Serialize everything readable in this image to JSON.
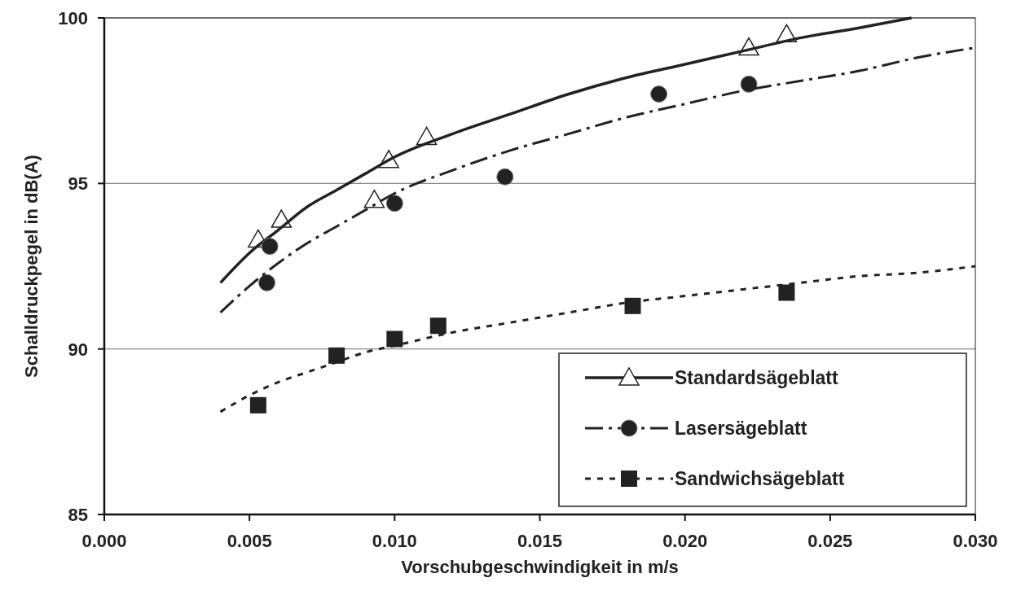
{
  "chart_data": {
    "type": "scatter",
    "xlabel": "Vorschubgeschwindigkeit in m/s",
    "ylabel": "Schalldruckpegel in dB(A)",
    "xlim": [
      0,
      0.03
    ],
    "xticks": [
      {
        "value": 0,
        "label": "0.000"
      },
      {
        "value": 0.005,
        "label": "0.005"
      },
      {
        "value": 0.01,
        "label": "0.010"
      },
      {
        "value": 0.015,
        "label": "0.015"
      },
      {
        "value": 0.02,
        "label": "0.020"
      },
      {
        "value": 0.025,
        "label": "0.025"
      },
      {
        "value": 0.03,
        "label": "0.030"
      }
    ],
    "ylim": [
      85,
      100
    ],
    "yticks": [
      85,
      90,
      95,
      100
    ],
    "grid": "y",
    "legend": "bottom right",
    "series": [
      {
        "name": "Standardsägeblatt",
        "marker": "triangle",
        "color": "#222222",
        "x": [
          0.0053,
          0.0061,
          0.0093,
          0.0098,
          0.0111,
          0.0222,
          0.0235
        ],
        "values": [
          93.3,
          93.9,
          94.5,
          95.7,
          96.4,
          99.1,
          99.5
        ]
      },
      {
        "type": "line",
        "line_style": "solid",
        "color": "#222222",
        "x": [
          0.004,
          0.005,
          0.006,
          0.007,
          0.008,
          0.009,
          0.01,
          0.012,
          0.014,
          0.016,
          0.018,
          0.02,
          0.022,
          0.024,
          0.026,
          0.0278
        ],
        "values": [
          92.0,
          92.9,
          93.6,
          94.3,
          94.8,
          95.3,
          95.8,
          96.5,
          97.1,
          97.7,
          98.2,
          98.6,
          99.0,
          99.4,
          99.7,
          100.0
        ]
      },
      {
        "name": "Lasersägeblatt",
        "marker": "circle",
        "color": "#222222",
        "x": [
          0.0057,
          0.0056,
          0.01,
          0.0138,
          0.0191,
          0.0222
        ],
        "values": [
          93.1,
          92.0,
          94.4,
          95.2,
          97.7,
          98.0
        ]
      },
      {
        "type": "line",
        "line_style": "dashed",
        "color": "#222222",
        "x": [
          0.004,
          0.005,
          0.006,
          0.007,
          0.008,
          0.009,
          0.01,
          0.012,
          0.014,
          0.016,
          0.018,
          0.02,
          0.022,
          0.024,
          0.026,
          0.028,
          0.03
        ],
        "values": [
          91.1,
          91.9,
          92.6,
          93.2,
          93.7,
          94.2,
          94.7,
          95.4,
          96.0,
          96.5,
          97.0,
          97.4,
          97.8,
          98.1,
          98.4,
          98.8,
          99.1
        ]
      },
      {
        "name": "Sandwichsägeblatt",
        "marker": "square",
        "color": "#222222",
        "x": [
          0.0053,
          0.008,
          0.01,
          0.0115,
          0.0182,
          0.0235
        ],
        "values": [
          88.3,
          89.8,
          90.3,
          90.7,
          91.3,
          91.7
        ]
      },
      {
        "type": "line",
        "line_style": "dotted",
        "color": "#222222",
        "x": [
          0.004,
          0.005,
          0.006,
          0.007,
          0.008,
          0.009,
          0.01,
          0.012,
          0.014,
          0.016,
          0.018,
          0.02,
          0.022,
          0.024,
          0.026,
          0.028,
          0.03
        ],
        "values": [
          88.1,
          88.6,
          89.0,
          89.3,
          89.6,
          89.9,
          90.1,
          90.5,
          90.8,
          91.1,
          91.4,
          91.6,
          91.8,
          92.0,
          92.2,
          92.3,
          92.5
        ]
      }
    ]
  }
}
